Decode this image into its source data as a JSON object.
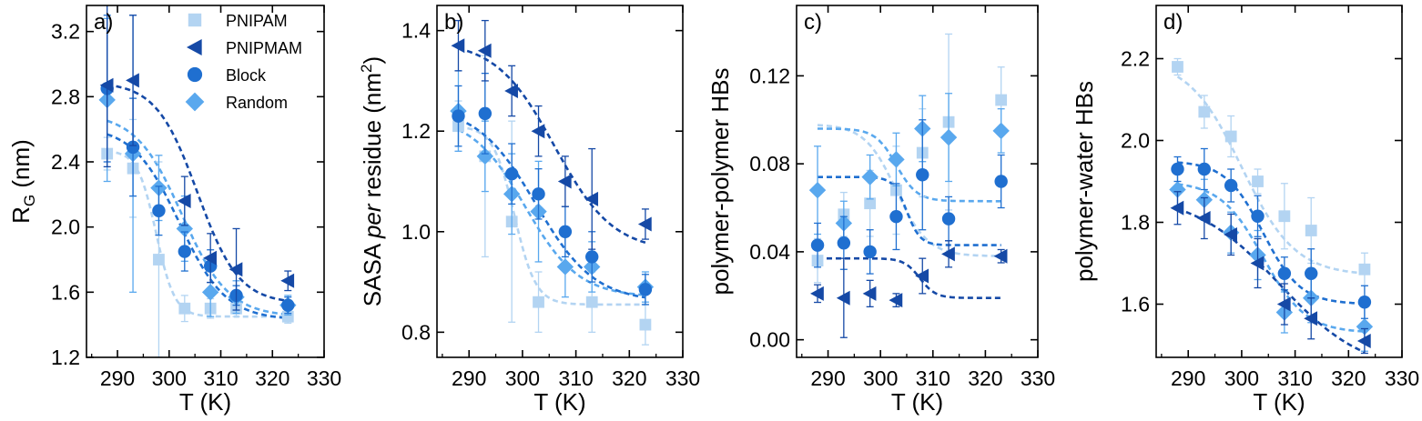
{
  "chart_data": {
    "type": "scatter",
    "series_meta": [
      {
        "name": "PNIPAM",
        "marker": "square",
        "color": "#b3d4f2",
        "fit_color": "#b3d4f2"
      },
      {
        "name": "PNIPMAM",
        "marker": "triangle-left",
        "color": "#1549a6",
        "fit_color": "#1549a6"
      },
      {
        "name": "Block",
        "marker": "circle",
        "color": "#1f6fd0",
        "fit_color": "#1f6fd0"
      },
      {
        "name": "Random",
        "marker": "diamond",
        "color": "#59a8ee",
        "fit_color": "#59a8ee"
      }
    ],
    "panels": [
      {
        "letter": "a)",
        "xlabel": "T (K)",
        "ylabel_main": "R",
        "ylabel_sub": "G",
        "ylabel_rest": " (nm)",
        "xlim": [
          284,
          330
        ],
        "ylim": [
          1.2,
          3.36
        ],
        "xticks": [
          290,
          300,
          310,
          320,
          330
        ],
        "xtick_labels": [
          "290",
          "300",
          "310",
          "320",
          "330"
        ],
        "yticks": [
          1.2,
          1.6,
          2.0,
          2.4,
          2.8,
          3.2
        ],
        "ytick_labels": [
          "1.2",
          "1.6",
          "2.0",
          "2.4",
          "2.8",
          "3.2"
        ],
        "legend": true,
        "series": [
          {
            "name": "PNIPAM",
            "x": [
              288,
              293,
              298,
              303,
              308,
              313,
              323
            ],
            "y": [
              2.45,
              2.36,
              1.8,
              1.5,
              1.5,
              1.5,
              1.45
            ],
            "err": [
              0.1,
              0.3,
              0.6,
              0.08,
              0.06,
              0.05,
              0.04
            ],
            "fit": {
              "low": 1.45,
              "high": 2.47,
              "tc": 297.5,
              "w": 1.8
            }
          },
          {
            "name": "PNIPMAM",
            "x": [
              288,
              293,
              303,
              308,
              313,
              323
            ],
            "y": [
              2.87,
              2.9,
              2.16,
              1.81,
              1.74,
              1.67
            ],
            "err": [
              0.5,
              0.4,
              0.15,
              0.15,
              0.25,
              0.06
            ],
            "fit": {
              "low": 1.53,
              "high": 2.89,
              "tc": 305.5,
              "w": 4.0
            }
          },
          {
            "name": "Block",
            "x": [
              288,
              293,
              298,
              303,
              308,
              313,
              323
            ],
            "y": [
              2.85,
              2.49,
              2.1,
              1.85,
              1.76,
              1.58,
              1.52
            ],
            "err": [
              0.45,
              0.3,
              0.15,
              0.12,
              0.1,
              0.06,
              0.05
            ],
            "fit": {
              "low": 1.43,
              "high": 2.62,
              "tc": 302,
              "w": 4.5
            }
          },
          {
            "name": "Random",
            "x": [
              288,
              293,
              298,
              303,
              308,
              313,
              323
            ],
            "y": [
              2.78,
              2.45,
              2.24,
              1.99,
              1.6,
              1.57,
              1.52
            ],
            "err": [
              0.5,
              0.85,
              0.2,
              0.2,
              0.15,
              0.1,
              0.06
            ],
            "fit": {
              "low": 1.45,
              "high": 2.7,
              "tc": 302.5,
              "w": 4.5
            }
          }
        ]
      },
      {
        "letter": "b)",
        "xlabel": "T (K)",
        "ylabel_main": "SASA ",
        "ylabel_italic": "per",
        "ylabel_rest": " residue (nm",
        "ylabel_sup": "2",
        "ylabel_end": ")",
        "xlim": [
          284,
          330
        ],
        "ylim": [
          0.75,
          1.45
        ],
        "xticks": [
          290,
          300,
          310,
          320,
          330
        ],
        "xtick_labels": [
          "290",
          "300",
          "310",
          "320",
          "330"
        ],
        "yticks": [
          0.8,
          1.0,
          1.2,
          1.4
        ],
        "ytick_labels": [
          "0.8",
          "1.0",
          "1.2",
          "1.4"
        ],
        "legend": false,
        "series": [
          {
            "name": "PNIPAM",
            "x": [
              288,
              293,
              298,
              303,
              313,
              323
            ],
            "y": [
              1.21,
              1.15,
              1.02,
              0.86,
              0.86,
              0.815
            ],
            "err": [
              0.05,
              0.2,
              0.2,
              0.06,
              0.06,
              0.04
            ],
            "fit": {
              "low": 0.855,
              "high": 1.21,
              "tc": 298.5,
              "w": 2.0
            }
          },
          {
            "name": "PNIPMAM",
            "x": [
              288,
              293,
              298,
              303,
              308,
              313,
              323
            ],
            "y": [
              1.37,
              1.36,
              1.28,
              1.2,
              1.1,
              1.065,
              1.015
            ],
            "err": [
              0.05,
              0.06,
              0.05,
              0.05,
              0.05,
              0.1,
              0.03
            ],
            "fit": {
              "low": 0.96,
              "high": 1.38,
              "tc": 306,
              "w": 5.5
            }
          },
          {
            "name": "Block",
            "x": [
              288,
              293,
              298,
              303,
              308,
              313,
              323
            ],
            "y": [
              1.23,
              1.235,
              1.115,
              1.075,
              1.0,
              0.95,
              0.885
            ],
            "err": [
              0.06,
              0.08,
              0.06,
              0.05,
              0.05,
              0.05,
              0.03
            ],
            "fit": {
              "low": 0.86,
              "high": 1.25,
              "tc": 302.5,
              "w": 5.5
            }
          },
          {
            "name": "Random",
            "x": [
              288,
              293,
              298,
              303,
              308,
              313,
              323
            ],
            "y": [
              1.24,
              1.15,
              1.075,
              1.04,
              0.93,
              0.93,
              0.89
            ],
            "err": [
              0.08,
              0.07,
              0.08,
              0.1,
              0.06,
              0.05,
              0.03
            ],
            "fit": {
              "low": 0.87,
              "high": 1.23,
              "tc": 300.5,
              "w": 5.0
            }
          }
        ]
      },
      {
        "letter": "c)",
        "xlabel": "T (K)",
        "ylabel_main": "polymer-polymer  HBs",
        "xlim": [
          284,
          330
        ],
        "ylim": [
          -0.008,
          0.152
        ],
        "xticks": [
          290,
          300,
          310,
          320,
          330
        ],
        "xtick_labels": [
          "290",
          "300",
          "310",
          "320",
          "330"
        ],
        "yticks": [
          0.0,
          0.04,
          0.08,
          0.12
        ],
        "ytick_labels": [
          "0.00",
          "0.04",
          "0.08",
          "0.12"
        ],
        "legend": false,
        "series": [
          {
            "name": "PNIPAM",
            "x": [
              288,
              293,
              298,
              303,
              308,
              313,
              323
            ],
            "y": [
              0.036,
              0.057,
              0.062,
              0.068,
              0.085,
              0.099,
              0.109
            ],
            "err": [
              0.01,
              0.01,
              0.015,
              0.02,
              0.02,
              0.04,
              0.015
            ],
            "fit": {
              "low": 0.038,
              "high": 0.098,
              "tc": 303,
              "w": 3.0
            }
          },
          {
            "name": "PNIPMAM",
            "x": [
              288,
              293,
              298,
              303,
              308,
              313,
              323
            ],
            "y": [
              0.021,
              0.019,
              0.021,
              0.018,
              0.029,
              0.039,
              0.038
            ],
            "err": [
              0.004,
              0.018,
              0.006,
              0.003,
              0.008,
              0.006,
              0.003
            ],
            "fit": {
              "low": 0.019,
              "high": 0.037,
              "tc": 307.5,
              "w": 1.5
            }
          },
          {
            "name": "Block",
            "x": [
              288,
              293,
              298,
              303,
              308,
              313,
              323
            ],
            "y": [
              0.043,
              0.044,
              0.04,
              0.056,
              0.075,
              0.055,
              0.072
            ],
            "err": [
              0.01,
              0.012,
              0.01,
              0.015,
              0.025,
              0.01,
              0.012
            ],
            "fit": {
              "low": 0.043,
              "high": 0.074,
              "tc": 305,
              "w": 1.3
            }
          },
          {
            "name": "Random",
            "x": [
              288,
              293,
              298,
              303,
              308,
              313,
              323
            ],
            "y": [
              0.068,
              0.053,
              0.074,
              0.082,
              0.096,
              0.092,
              0.095
            ],
            "err": [
              0.02,
              0.01,
              0.01,
              0.012,
              0.015,
              0.02,
              0.01
            ],
            "fit": {
              "low": 0.063,
              "high": 0.096,
              "tc": 303,
              "w": 2.0
            }
          }
        ]
      },
      {
        "letter": "d)",
        "xlabel": "T (K)",
        "ylabel_main": "polymer-water  HBs",
        "xlim": [
          284,
          330
        ],
        "ylim": [
          1.47,
          2.33
        ],
        "xticks": [
          290,
          300,
          310,
          320,
          330
        ],
        "xtick_labels": [
          "290",
          "300",
          "310",
          "320",
          "330"
        ],
        "yticks": [
          1.6,
          1.8,
          2.0,
          2.2
        ],
        "ytick_labels": [
          "1.6",
          "1.8",
          "2.0",
          "2.2"
        ],
        "legend": false,
        "series": [
          {
            "name": "PNIPAM",
            "x": [
              288,
              293,
              298,
              303,
              308,
              313,
              323
            ],
            "y": [
              2.18,
              2.07,
              2.01,
              1.9,
              1.815,
              1.78,
              1.685
            ],
            "err": [
              0.02,
              0.04,
              0.05,
              0.03,
              0.08,
              0.08,
              0.04
            ],
            "fit": {
              "low": 1.67,
              "high": 2.2,
              "tc": 300,
              "w": 5.0
            }
          },
          {
            "name": "PNIPMAM",
            "x": [
              288,
              293,
              298,
              303,
              308,
              313,
              323
            ],
            "y": [
              1.835,
              1.81,
              1.77,
              1.7,
              1.6,
              1.565,
              1.51
            ],
            "err": [
              0.04,
              0.05,
              0.05,
              0.06,
              0.05,
              0.05,
              0.03
            ],
            "fit": {
              "low": 1.43,
              "high": 1.87,
              "tc": 307,
              "w": 8.0
            }
          },
          {
            "name": "Block",
            "x": [
              288,
              293,
              298,
              303,
              308,
              313,
              323
            ],
            "y": [
              1.93,
              1.93,
              1.89,
              1.815,
              1.675,
              1.675,
              1.605
            ],
            "err": [
              0.03,
              0.05,
              0.04,
              0.05,
              0.04,
              0.06,
              0.04
            ],
            "fit": {
              "low": 1.6,
              "high": 1.95,
              "tc": 304,
              "w": 3.5
            }
          },
          {
            "name": "Random",
            "x": [
              288,
              293,
              298,
              303,
              308,
              313,
              323
            ],
            "y": [
              1.88,
              1.855,
              1.775,
              1.72,
              1.58,
              1.615,
              1.545
            ],
            "err": [
              0.04,
              0.05,
              0.05,
              0.06,
              0.05,
              0.06,
              0.06
            ],
            "fit": {
              "low": 1.53,
              "high": 1.9,
              "tc": 304,
              "w": 4.0
            }
          }
        ]
      }
    ]
  }
}
